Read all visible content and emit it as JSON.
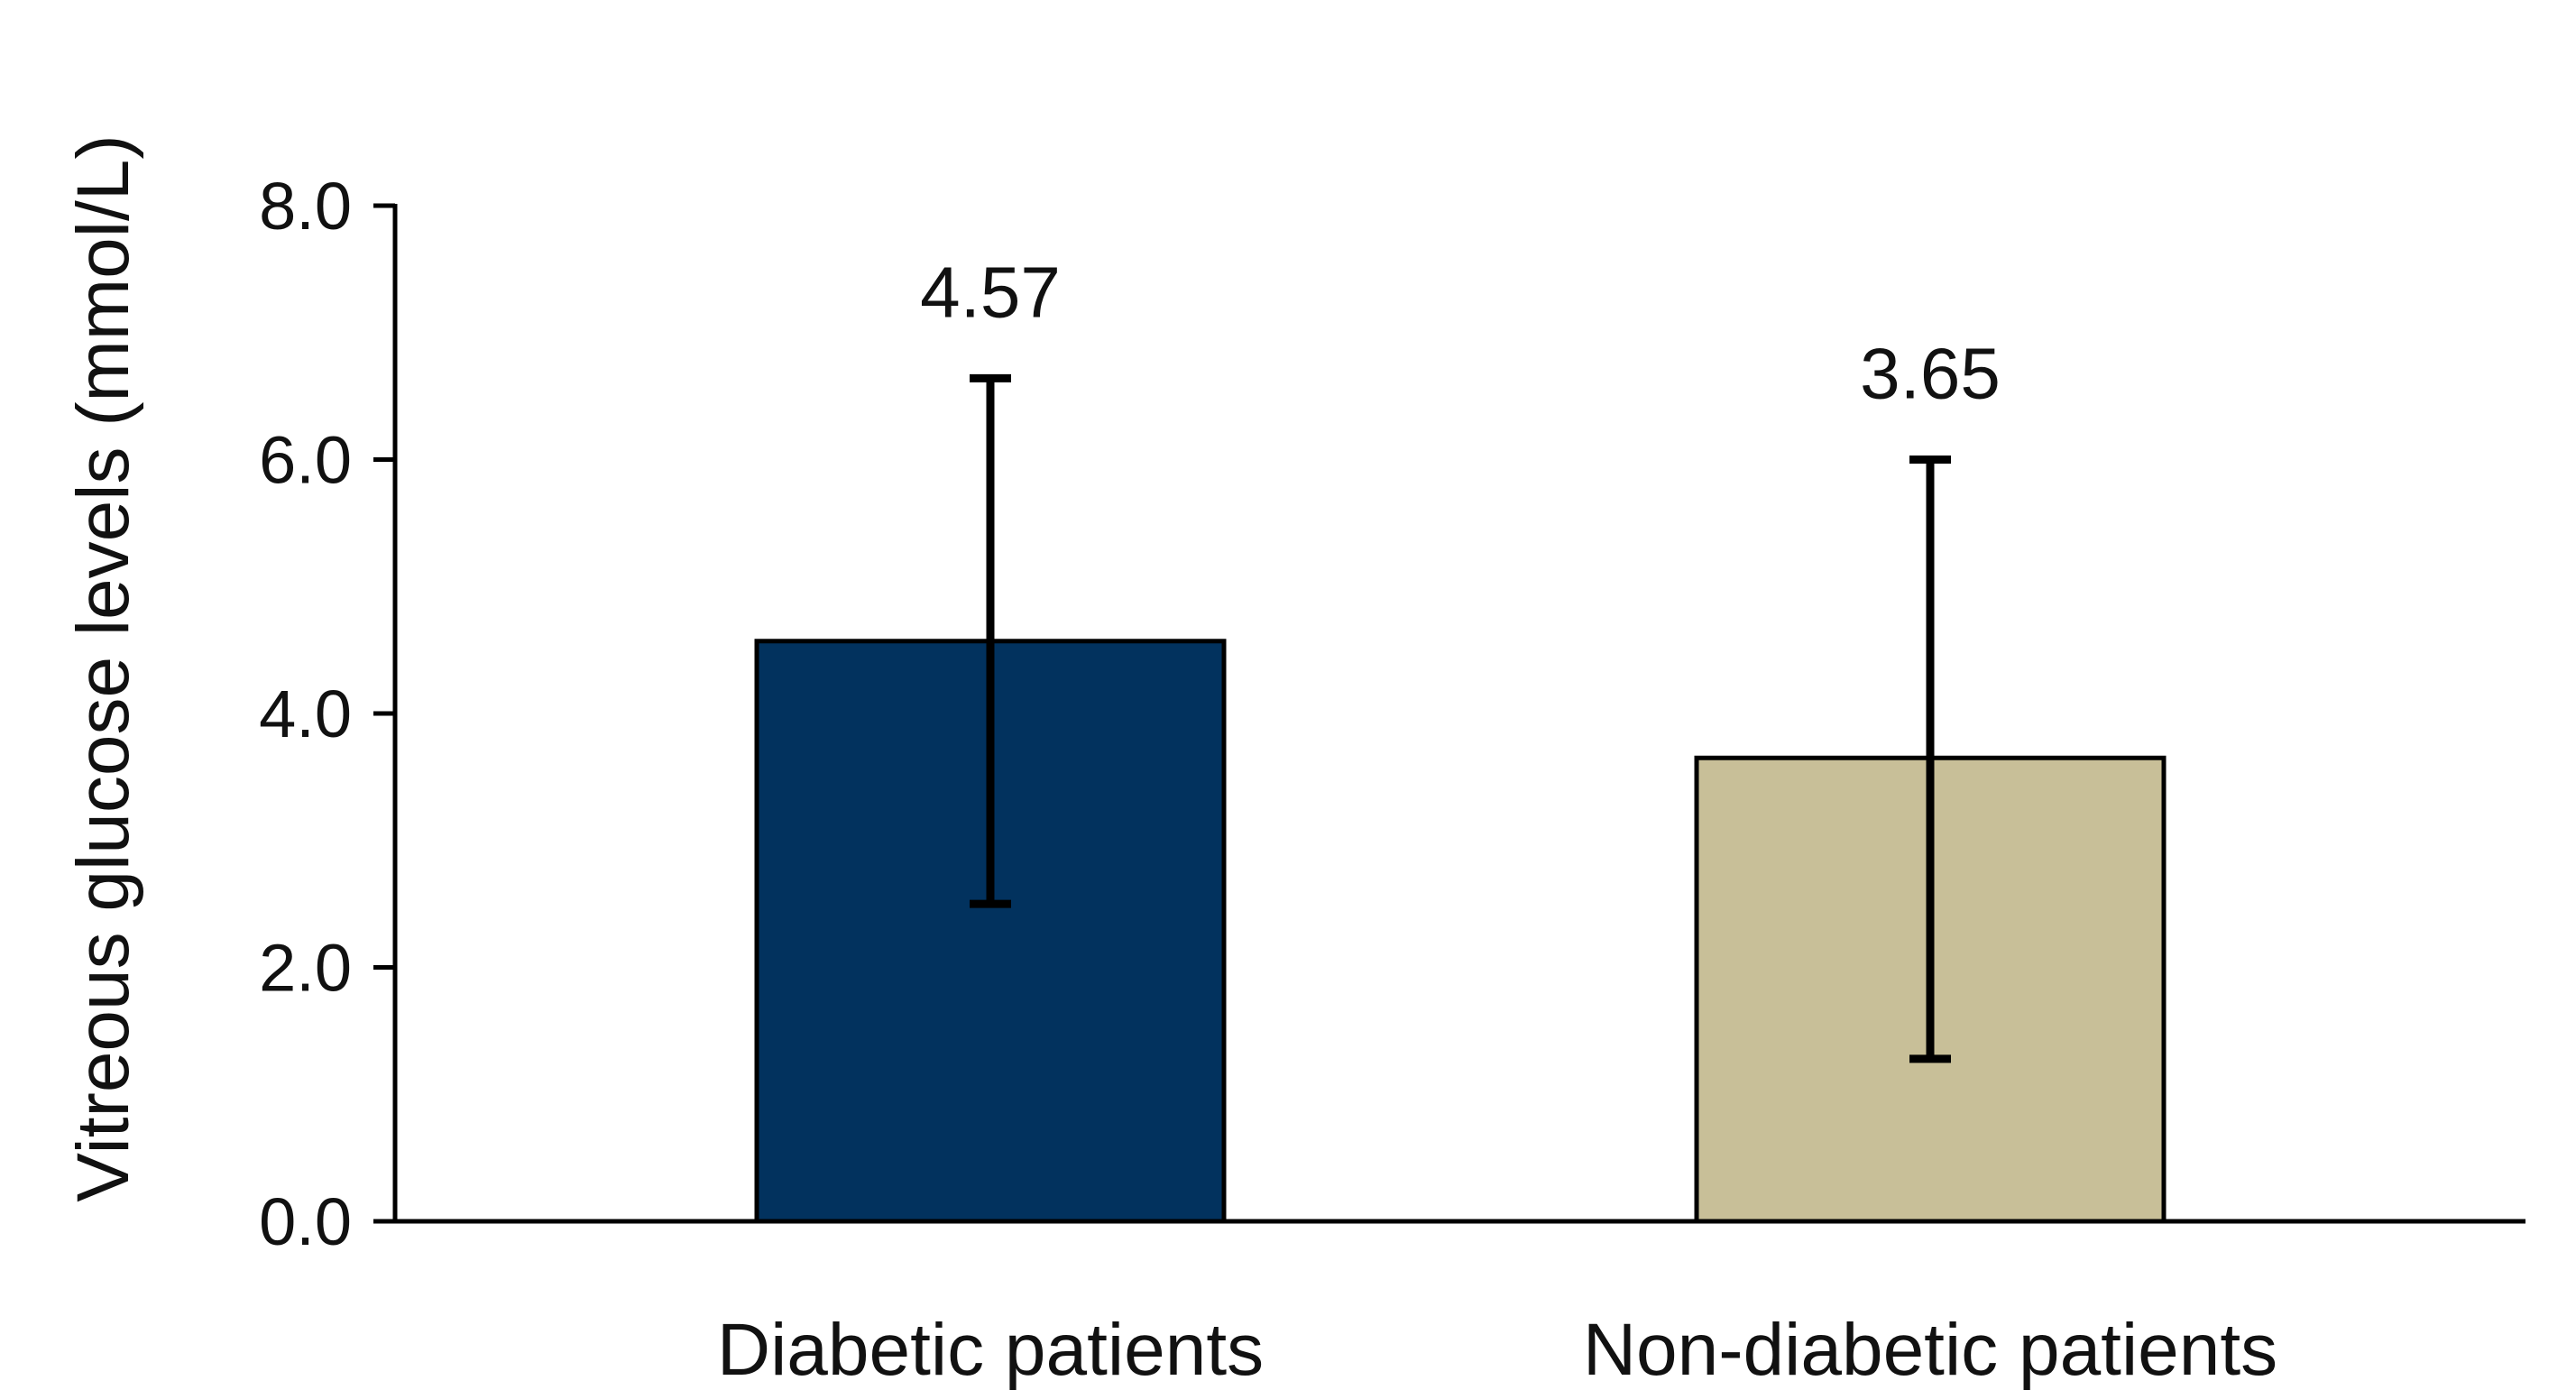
{
  "chart_data": {
    "type": "bar",
    "title": "",
    "xlabel": "",
    "ylabel": "Vitreous glucose levels (mmol/L)",
    "ylim": [
      0,
      8
    ],
    "yticks": [
      0,
      2,
      4,
      6,
      8
    ],
    "ytick_labels": [
      "0.0",
      "2.0",
      "4.0",
      "6.0",
      "8.0"
    ],
    "grid": false,
    "categories": [
      "Diabetic patients",
      "Non-diabetic patients"
    ],
    "values": [
      4.57,
      3.65
    ],
    "value_labels": [
      "4.57",
      "3.65"
    ],
    "error_upper": [
      2.07,
      2.35
    ],
    "error_lower": [
      2.07,
      2.37
    ],
    "colors": [
      "#02325E",
      "#C8BF98"
    ],
    "edge_color": "#000000"
  }
}
